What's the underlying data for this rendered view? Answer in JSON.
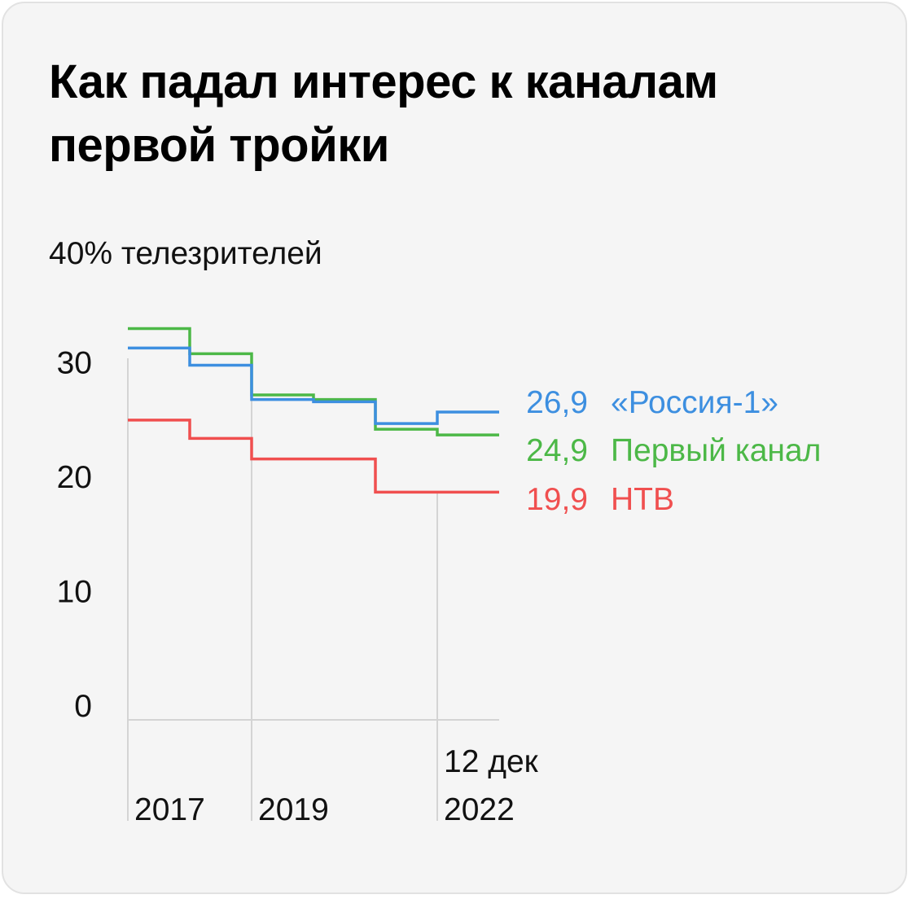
{
  "title": "Как падал интерес к каналам первой тройки",
  "chart_data": {
    "type": "line",
    "step": true,
    "title": "Как падал интерес к каналам первой тройки",
    "ylabel": "40% телезрителей",
    "y_ticks": [
      "30",
      "20",
      "10",
      "0"
    ],
    "y_tick_values": [
      30,
      20,
      10,
      0
    ],
    "ylim": [
      0,
      40
    ],
    "x_tick_labels": [
      {
        "line1": "",
        "line2": "2017"
      },
      {
        "line1": "",
        "line2": "2019"
      },
      {
        "line1": "12 дек",
        "line2": "2022"
      }
    ],
    "x_tick_values": [
      0,
      2,
      5
    ],
    "x_end": 6,
    "grid": "vertical lines at x ticks",
    "series": [
      {
        "name": "«Россия-1»",
        "end_label": "26,9",
        "color": "#3d8fe0",
        "x": [
          0,
          1,
          2,
          3,
          4,
          5,
          6
        ],
        "values": [
          32.5,
          31.0,
          28.0,
          27.8,
          25.9,
          26.9,
          26.9
        ]
      },
      {
        "name": "Первый канал",
        "end_label": "24,9",
        "color": "#4cb847",
        "x": [
          0,
          1,
          2,
          3,
          4,
          5,
          6
        ],
        "values": [
          34.2,
          32.0,
          28.4,
          28.0,
          25.4,
          24.9,
          24.9
        ]
      },
      {
        "name": "НТВ",
        "end_label": "19,9",
        "color": "#f04f4f",
        "x": [
          0,
          1,
          2,
          3,
          4,
          5,
          6
        ],
        "values": [
          26.2,
          24.6,
          22.8,
          22.8,
          19.9,
          19.9,
          19.9
        ]
      }
    ]
  }
}
